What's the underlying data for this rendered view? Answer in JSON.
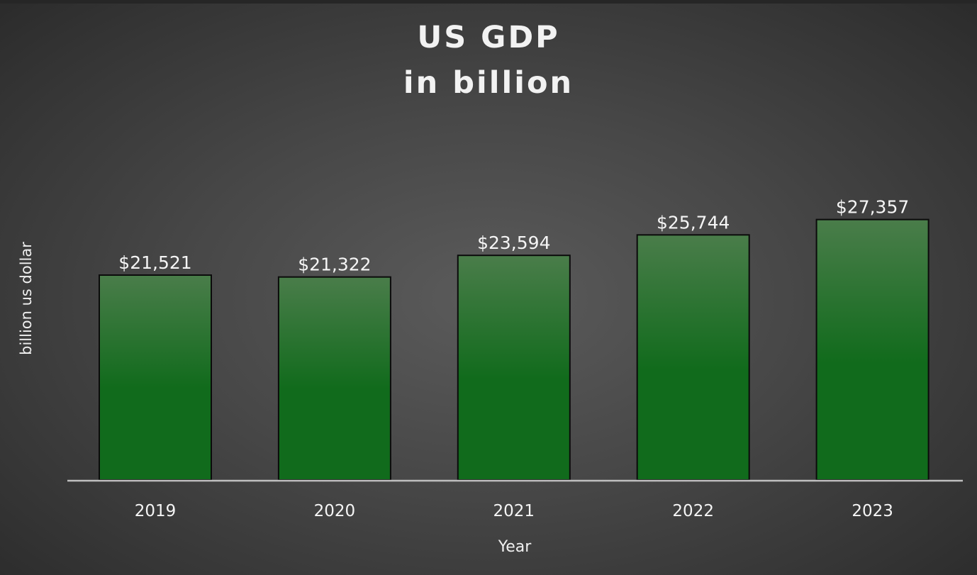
{
  "chart_data": {
    "type": "bar",
    "title": [
      "US GDP",
      "in billion"
    ],
    "xlabel": "Year",
    "ylabel": "billion us dollar",
    "categories": [
      "2019",
      "2020",
      "2021",
      "2022",
      "2023"
    ],
    "values": [
      21521,
      21322,
      23594,
      25744,
      27357
    ],
    "value_labels": [
      "$21,521",
      "$21,322",
      "$23,594",
      "$25,744",
      "$27,357"
    ],
    "ylim": [
      0,
      30000
    ],
    "grid": false,
    "legend": "none",
    "colors": {
      "bar_top": "#4a7d4a",
      "bar_bottom": "#116b1c",
      "bar_outline": "#0b0b0b",
      "axis_line": "#bfbfbf",
      "text": "#f2f2f2"
    }
  }
}
